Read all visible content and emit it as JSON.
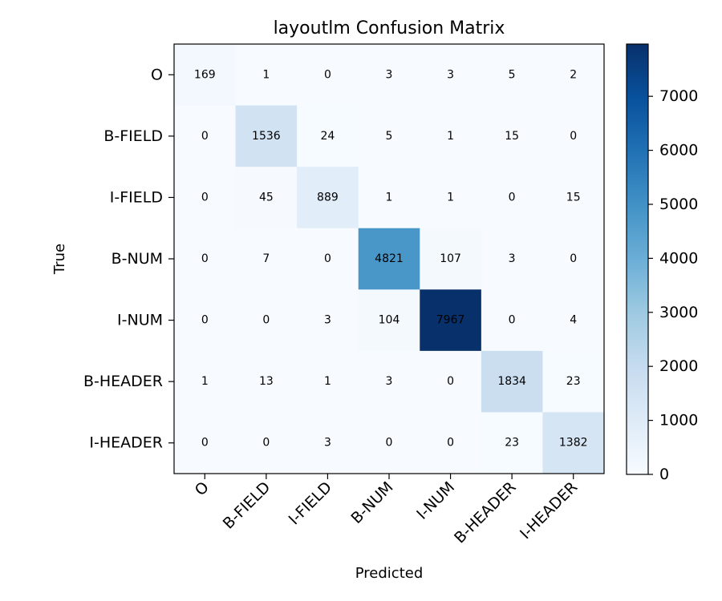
{
  "chart_data": {
    "type": "heatmap",
    "title": "layoutlm Confusion Matrix",
    "xlabel": "Predicted",
    "ylabel": "True",
    "x_labels": [
      "O",
      "B-FIELD",
      "I-FIELD",
      "B-NUM",
      "I-NUM",
      "B-HEADER",
      "I-HEADER"
    ],
    "y_labels": [
      "O",
      "B-FIELD",
      "I-FIELD",
      "B-NUM",
      "I-NUM",
      "B-HEADER",
      "I-HEADER"
    ],
    "values": [
      [
        169,
        1,
        0,
        3,
        3,
        5,
        2
      ],
      [
        0,
        1536,
        24,
        5,
        1,
        15,
        0
      ],
      [
        0,
        45,
        889,
        1,
        1,
        0,
        15
      ],
      [
        0,
        7,
        0,
        4821,
        107,
        3,
        0
      ],
      [
        0,
        0,
        3,
        104,
        7967,
        0,
        4
      ],
      [
        1,
        13,
        1,
        3,
        0,
        1834,
        23
      ],
      [
        0,
        0,
        3,
        0,
        0,
        23,
        1382
      ]
    ],
    "colormap": "Blues",
    "colorbar": {
      "range": [
        0,
        7967
      ],
      "ticks": [
        0,
        1000,
        2000,
        3000,
        4000,
        5000,
        6000,
        7000
      ]
    },
    "grid": false
  }
}
